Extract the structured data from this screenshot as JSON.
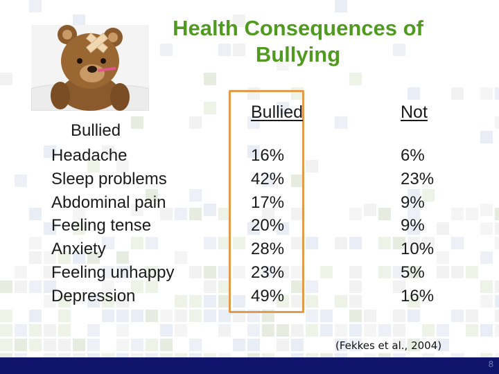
{
  "slide": {
    "title": "Health Consequences of Bullying",
    "row_header": "Bullied",
    "columns": [
      "Bullied",
      "Not"
    ],
    "rows": [
      {
        "label": "Headache",
        "bullied": "16%",
        "not": "6%"
      },
      {
        "label": "Sleep problems",
        "bullied": "42%",
        "not": "23%"
      },
      {
        "label": "Abdominal pain",
        "bullied": "17%",
        "not": "9%"
      },
      {
        "label": "Feeling tense",
        "bullied": "20%",
        "not": "9%"
      },
      {
        "label": "Anxiety",
        "bullied": "28%",
        "not": "10%"
      },
      {
        "label": "Feeling unhappy",
        "bullied": "23%",
        "not": "5%"
      },
      {
        "label": "Depression",
        "bullied": "49%",
        "not": "16%"
      }
    ],
    "citation": "(Fekkes et al., 2004)",
    "page_number": "8"
  },
  "colors": {
    "title": "#4f9a1f",
    "highlight_box": "#e39a4a",
    "footer_bar": "#10146a"
  }
}
